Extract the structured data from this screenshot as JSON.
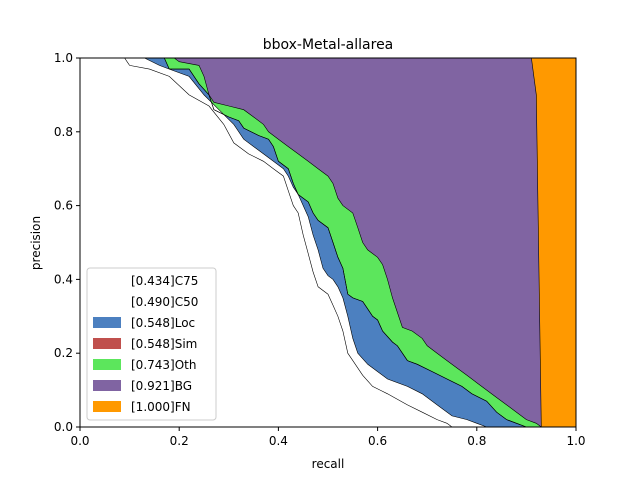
{
  "chart_data": {
    "type": "area",
    "title": "bbox-Metal-allarea",
    "xlabel": "recall",
    "ylabel": "precision",
    "xlim": [
      0,
      1
    ],
    "ylim": [
      0,
      1
    ],
    "xticks": [
      "0.0",
      "0.2",
      "0.4",
      "0.6",
      "0.8",
      "1.0"
    ],
    "yticks": [
      "0.0",
      "0.2",
      "0.4",
      "0.6",
      "0.8",
      "1.0"
    ],
    "grid": false,
    "legend_position": "lower-left",
    "series": [
      {
        "name": "[0.434]C75",
        "color": "#ffffff",
        "points": [
          [
            0,
            1
          ],
          [
            0.09,
            1
          ],
          [
            0.1,
            0.98
          ],
          [
            0.14,
            0.97
          ],
          [
            0.18,
            0.95
          ],
          [
            0.22,
            0.9
          ],
          [
            0.26,
            0.87
          ],
          [
            0.29,
            0.82
          ],
          [
            0.31,
            0.77
          ],
          [
            0.34,
            0.74
          ],
          [
            0.37,
            0.72
          ],
          [
            0.39,
            0.7
          ],
          [
            0.41,
            0.68
          ],
          [
            0.42,
            0.64
          ],
          [
            0.43,
            0.6
          ],
          [
            0.44,
            0.58
          ],
          [
            0.45,
            0.52
          ],
          [
            0.46,
            0.47
          ],
          [
            0.47,
            0.42
          ],
          [
            0.48,
            0.38
          ],
          [
            0.5,
            0.36
          ],
          [
            0.51,
            0.33
          ],
          [
            0.52,
            0.3
          ],
          [
            0.53,
            0.26
          ],
          [
            0.54,
            0.2
          ],
          [
            0.55,
            0.18
          ],
          [
            0.57,
            0.14
          ],
          [
            0.59,
            0.11
          ],
          [
            0.62,
            0.09
          ],
          [
            0.66,
            0.06
          ],
          [
            0.69,
            0.04
          ],
          [
            0.72,
            0.02
          ],
          [
            0.74,
            0.01
          ],
          [
            0.75,
            0
          ]
        ]
      },
      {
        "name": "[0.490]C50",
        "color": "#ffffff",
        "points": [
          [
            0,
            1
          ],
          [
            0.13,
            1
          ],
          [
            0.16,
            0.98
          ],
          [
            0.18,
            0.97
          ],
          [
            0.22,
            0.95
          ],
          [
            0.25,
            0.9
          ],
          [
            0.28,
            0.86
          ],
          [
            0.31,
            0.82
          ],
          [
            0.33,
            0.78
          ],
          [
            0.36,
            0.75
          ],
          [
            0.39,
            0.72
          ],
          [
            0.41,
            0.7
          ],
          [
            0.42,
            0.68
          ],
          [
            0.43,
            0.65
          ],
          [
            0.44,
            0.63
          ],
          [
            0.45,
            0.6
          ],
          [
            0.46,
            0.57
          ],
          [
            0.47,
            0.52
          ],
          [
            0.48,
            0.48
          ],
          [
            0.49,
            0.43
          ],
          [
            0.5,
            0.41
          ],
          [
            0.51,
            0.4
          ],
          [
            0.52,
            0.38
          ],
          [
            0.53,
            0.35
          ],
          [
            0.54,
            0.3
          ],
          [
            0.55,
            0.24
          ],
          [
            0.56,
            0.2
          ],
          [
            0.58,
            0.17
          ],
          [
            0.6,
            0.15
          ],
          [
            0.62,
            0.13
          ],
          [
            0.66,
            0.11
          ],
          [
            0.69,
            0.09
          ],
          [
            0.72,
            0.06
          ],
          [
            0.75,
            0.03
          ],
          [
            0.78,
            0.02
          ],
          [
            0.8,
            0.01
          ],
          [
            0.82,
            0
          ]
        ]
      },
      {
        "name": "[0.548]Loc",
        "color": "#4c80c0",
        "points": [
          [
            0,
            1
          ],
          [
            0.17,
            1
          ],
          [
            0.18,
            0.97
          ],
          [
            0.22,
            0.97
          ],
          [
            0.24,
            0.93
          ],
          [
            0.26,
            0.9
          ],
          [
            0.27,
            0.86
          ],
          [
            0.3,
            0.84
          ],
          [
            0.32,
            0.83
          ],
          [
            0.33,
            0.81
          ],
          [
            0.36,
            0.79
          ],
          [
            0.38,
            0.78
          ],
          [
            0.39,
            0.76
          ],
          [
            0.4,
            0.72
          ],
          [
            0.42,
            0.7
          ],
          [
            0.43,
            0.66
          ],
          [
            0.44,
            0.63
          ],
          [
            0.46,
            0.61
          ],
          [
            0.47,
            0.58
          ],
          [
            0.48,
            0.56
          ],
          [
            0.5,
            0.54
          ],
          [
            0.51,
            0.5
          ],
          [
            0.52,
            0.46
          ],
          [
            0.53,
            0.43
          ],
          [
            0.54,
            0.36
          ],
          [
            0.55,
            0.35
          ],
          [
            0.57,
            0.34
          ],
          [
            0.58,
            0.32
          ],
          [
            0.59,
            0.3
          ],
          [
            0.6,
            0.29
          ],
          [
            0.61,
            0.26
          ],
          [
            0.63,
            0.23
          ],
          [
            0.64,
            0.22
          ],
          [
            0.65,
            0.2
          ],
          [
            0.66,
            0.18
          ],
          [
            0.68,
            0.17
          ],
          [
            0.71,
            0.15
          ],
          [
            0.74,
            0.13
          ],
          [
            0.77,
            0.11
          ],
          [
            0.79,
            0.09
          ],
          [
            0.82,
            0.07
          ],
          [
            0.84,
            0.04
          ],
          [
            0.86,
            0.02
          ],
          [
            0.88,
            0.01
          ],
          [
            0.9,
            0
          ]
        ]
      },
      {
        "name": "[0.548]Sim",
        "color": "#c0504d",
        "points": [
          [
            0,
            1
          ],
          [
            0.17,
            1
          ],
          [
            0.18,
            0.97
          ],
          [
            0.22,
            0.97
          ],
          [
            0.24,
            0.93
          ],
          [
            0.26,
            0.9
          ],
          [
            0.27,
            0.86
          ],
          [
            0.3,
            0.84
          ],
          [
            0.32,
            0.83
          ],
          [
            0.33,
            0.81
          ],
          [
            0.36,
            0.79
          ],
          [
            0.38,
            0.78
          ],
          [
            0.39,
            0.76
          ],
          [
            0.4,
            0.72
          ],
          [
            0.42,
            0.7
          ],
          [
            0.43,
            0.66
          ],
          [
            0.44,
            0.63
          ],
          [
            0.46,
            0.61
          ],
          [
            0.47,
            0.58
          ],
          [
            0.48,
            0.56
          ],
          [
            0.5,
            0.54
          ],
          [
            0.51,
            0.5
          ],
          [
            0.52,
            0.46
          ],
          [
            0.53,
            0.43
          ],
          [
            0.54,
            0.36
          ],
          [
            0.55,
            0.35
          ],
          [
            0.57,
            0.34
          ],
          [
            0.58,
            0.32
          ],
          [
            0.59,
            0.3
          ],
          [
            0.6,
            0.29
          ],
          [
            0.61,
            0.26
          ],
          [
            0.63,
            0.23
          ],
          [
            0.64,
            0.22
          ],
          [
            0.65,
            0.2
          ],
          [
            0.66,
            0.18
          ],
          [
            0.68,
            0.17
          ],
          [
            0.71,
            0.15
          ],
          [
            0.74,
            0.13
          ],
          [
            0.77,
            0.11
          ],
          [
            0.79,
            0.09
          ],
          [
            0.82,
            0.07
          ],
          [
            0.84,
            0.04
          ],
          [
            0.86,
            0.02
          ],
          [
            0.88,
            0.01
          ],
          [
            0.9,
            0
          ]
        ]
      },
      {
        "name": "[0.743]Oth",
        "color": "#5ce65c",
        "points": [
          [
            0,
            1
          ],
          [
            0.19,
            1
          ],
          [
            0.2,
            0.99
          ],
          [
            0.24,
            0.98
          ],
          [
            0.25,
            0.95
          ],
          [
            0.26,
            0.9
          ],
          [
            0.27,
            0.88
          ],
          [
            0.3,
            0.87
          ],
          [
            0.33,
            0.86
          ],
          [
            0.35,
            0.84
          ],
          [
            0.37,
            0.82
          ],
          [
            0.38,
            0.8
          ],
          [
            0.4,
            0.78
          ],
          [
            0.42,
            0.76
          ],
          [
            0.44,
            0.74
          ],
          [
            0.46,
            0.72
          ],
          [
            0.48,
            0.7
          ],
          [
            0.5,
            0.68
          ],
          [
            0.51,
            0.66
          ],
          [
            0.52,
            0.62
          ],
          [
            0.53,
            0.6
          ],
          [
            0.55,
            0.58
          ],
          [
            0.56,
            0.54
          ],
          [
            0.57,
            0.5
          ],
          [
            0.58,
            0.48
          ],
          [
            0.6,
            0.46
          ],
          [
            0.61,
            0.44
          ],
          [
            0.62,
            0.4
          ],
          [
            0.63,
            0.35
          ],
          [
            0.65,
            0.27
          ],
          [
            0.67,
            0.26
          ],
          [
            0.69,
            0.24
          ],
          [
            0.7,
            0.22
          ],
          [
            0.72,
            0.2
          ],
          [
            0.74,
            0.18
          ],
          [
            0.76,
            0.16
          ],
          [
            0.78,
            0.14
          ],
          [
            0.8,
            0.12
          ],
          [
            0.82,
            0.1
          ],
          [
            0.84,
            0.08
          ],
          [
            0.86,
            0.06
          ],
          [
            0.88,
            0.04
          ],
          [
            0.9,
            0.02
          ],
          [
            0.92,
            0.01
          ],
          [
            0.93,
            0
          ]
        ]
      },
      {
        "name": "[0.921]BG",
        "color": "#8064a2",
        "points": [
          [
            0,
            1
          ],
          [
            0.91,
            1
          ],
          [
            0.92,
            0.9
          ],
          [
            0.93,
            0
          ]
        ]
      },
      {
        "name": "[1.000]FN",
        "color": "#ff9900",
        "points": [
          [
            0,
            1
          ],
          [
            1,
            1
          ],
          [
            1,
            0
          ]
        ]
      }
    ]
  }
}
